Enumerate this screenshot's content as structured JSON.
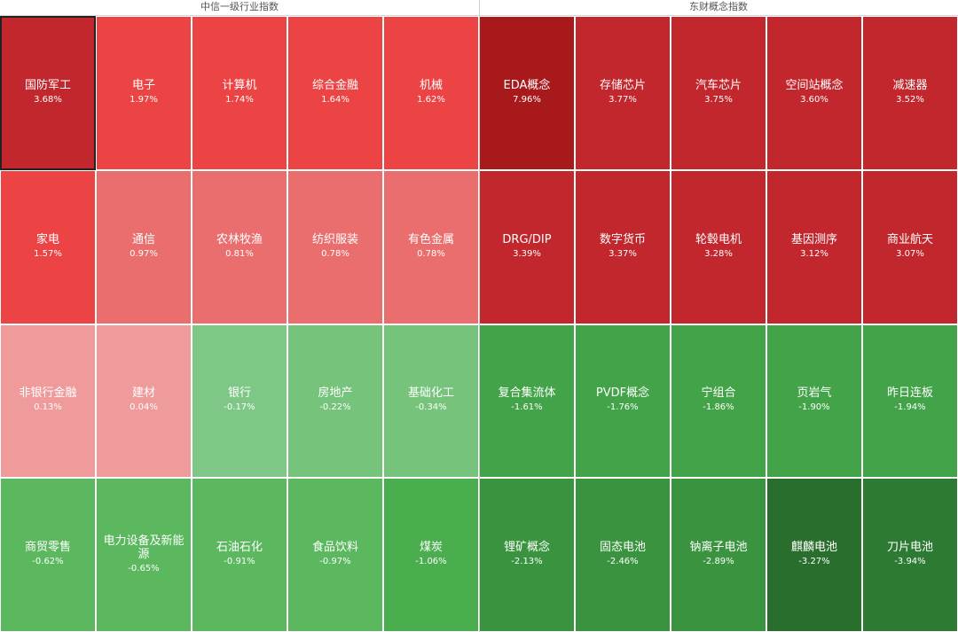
{
  "panels": [
    {
      "title": "中信一级行业指数",
      "cells": [
        {
          "name": "国防军工",
          "pct": "3.68%",
          "value": 3.68,
          "color": "#c1272d",
          "selected": true
        },
        {
          "name": "电子",
          "pct": "1.97%",
          "value": 1.97,
          "color": "#ec4444"
        },
        {
          "name": "计算机",
          "pct": "1.74%",
          "value": 1.74,
          "color": "#ec4444"
        },
        {
          "name": "综合金融",
          "pct": "1.64%",
          "value": 1.64,
          "color": "#ec4444"
        },
        {
          "name": "机械",
          "pct": "1.62%",
          "value": 1.62,
          "color": "#ec4444"
        },
        {
          "name": "家电",
          "pct": "1.57%",
          "value": 1.57,
          "color": "#ec4444"
        },
        {
          "name": "通信",
          "pct": "0.97%",
          "value": 0.97,
          "color": "#eb6e6e"
        },
        {
          "name": "农林牧渔",
          "pct": "0.81%",
          "value": 0.81,
          "color": "#eb6e6e"
        },
        {
          "name": "纺织服装",
          "pct": "0.78%",
          "value": 0.78,
          "color": "#eb6e6e"
        },
        {
          "name": "有色金属",
          "pct": "0.78%",
          "value": 0.78,
          "color": "#eb6e6e"
        },
        {
          "name": "非银行金融",
          "pct": "0.13%",
          "value": 0.13,
          "color": "#ef9a9b"
        },
        {
          "name": "建材",
          "pct": "0.04%",
          "value": 0.04,
          "color": "#ef9a9b"
        },
        {
          "name": "银行",
          "pct": "-0.17%",
          "value": -0.17,
          "color": "#7ec786"
        },
        {
          "name": "房地产",
          "pct": "-0.22%",
          "value": -0.22,
          "color": "#76c47c"
        },
        {
          "name": "基础化工",
          "pct": "-0.34%",
          "value": -0.34,
          "color": "#76c47c"
        },
        {
          "name": "商贸零售",
          "pct": "-0.62%",
          "value": -0.62,
          "color": "#5bb85f"
        },
        {
          "name": "电力设备及新能源",
          "pct": "-0.65%",
          "value": -0.65,
          "color": "#5bb85f"
        },
        {
          "name": "石油石化",
          "pct": "-0.91%",
          "value": -0.91,
          "color": "#5bb85f"
        },
        {
          "name": "食品饮料",
          "pct": "-0.97%",
          "value": -0.97,
          "color": "#5bb85f"
        },
        {
          "name": "煤炭",
          "pct": "-1.06%",
          "value": -1.06,
          "color": "#4aae4e"
        }
      ]
    },
    {
      "title": "东财概念指数",
      "cells": [
        {
          "name": "EDA概念",
          "pct": "7.96%",
          "value": 7.96,
          "color": "#a8191b"
        },
        {
          "name": "存储芯片",
          "pct": "3.77%",
          "value": 3.77,
          "color": "#c1272d"
        },
        {
          "name": "汽车芯片",
          "pct": "3.75%",
          "value": 3.75,
          "color": "#c1272d"
        },
        {
          "name": "空间站概念",
          "pct": "3.60%",
          "value": 3.6,
          "color": "#c1272d"
        },
        {
          "name": "减速器",
          "pct": "3.52%",
          "value": 3.52,
          "color": "#c1272d"
        },
        {
          "name": "DRG/DIP",
          "pct": "3.39%",
          "value": 3.39,
          "color": "#c1272d"
        },
        {
          "name": "数字货币",
          "pct": "3.37%",
          "value": 3.37,
          "color": "#c1272d"
        },
        {
          "name": "轮毂电机",
          "pct": "3.28%",
          "value": 3.28,
          "color": "#c1272d"
        },
        {
          "name": "基因测序",
          "pct": "3.12%",
          "value": 3.12,
          "color": "#c1272d"
        },
        {
          "name": "商业航天",
          "pct": "3.07%",
          "value": 3.07,
          "color": "#c1272d"
        },
        {
          "name": "复合集流体",
          "pct": "-1.61%",
          "value": -1.61,
          "color": "#43a348"
        },
        {
          "name": "PVDF概念",
          "pct": "-1.76%",
          "value": -1.76,
          "color": "#43a348"
        },
        {
          "name": "宁组合",
          "pct": "-1.86%",
          "value": -1.86,
          "color": "#43a348"
        },
        {
          "name": "页岩气",
          "pct": "-1.90%",
          "value": -1.9,
          "color": "#43a348"
        },
        {
          "name": "昨日连板",
          "pct": "-1.94%",
          "value": -1.94,
          "color": "#43a348"
        },
        {
          "name": "锂矿概念",
          "pct": "-2.13%",
          "value": -2.13,
          "color": "#3a943f"
        },
        {
          "name": "固态电池",
          "pct": "-2.46%",
          "value": -2.46,
          "color": "#3a943f"
        },
        {
          "name": "钠离子电池",
          "pct": "-2.89%",
          "value": -2.89,
          "color": "#3a943f"
        },
        {
          "name": "麒麟电池",
          "pct": "-3.27%",
          "value": -3.27,
          "color": "#2a6e2e"
        },
        {
          "name": "刀片电池",
          "pct": "-3.94%",
          "value": -3.94,
          "color": "#2d7a32"
        }
      ]
    }
  ],
  "chart_data": {
    "type": "heatmap",
    "panels": [
      {
        "title": "中信一级行业指数",
        "categories": [
          "国防军工",
          "电子",
          "计算机",
          "综合金融",
          "机械",
          "家电",
          "通信",
          "农林牧渔",
          "纺织服装",
          "有色金属",
          "非银行金融",
          "建材",
          "银行",
          "房地产",
          "基础化工",
          "商贸零售",
          "电力设备及新能源",
          "石油石化",
          "食品饮料",
          "煤炭"
        ],
        "values": [
          3.68,
          1.97,
          1.74,
          1.64,
          1.62,
          1.57,
          0.97,
          0.81,
          0.78,
          0.78,
          0.13,
          0.04,
          -0.17,
          -0.22,
          -0.34,
          -0.62,
          -0.65,
          -0.91,
          -0.97,
          -1.06
        ]
      },
      {
        "title": "东财概念指数",
        "categories": [
          "EDA概念",
          "存储芯片",
          "汽车芯片",
          "空间站概念",
          "减速器",
          "DRG/DIP",
          "数字货币",
          "轮毂电机",
          "基因测序",
          "商业航天",
          "复合集流体",
          "PVDF概念",
          "宁组合",
          "页岩气",
          "昨日连板",
          "锂矿概念",
          "固态电池",
          "钠离子电池",
          "麒麟电池",
          "刀片电池"
        ],
        "values": [
          7.96,
          3.77,
          3.75,
          3.6,
          3.52,
          3.39,
          3.37,
          3.28,
          3.12,
          3.07,
          -1.61,
          -1.76,
          -1.86,
          -1.9,
          -1.94,
          -2.13,
          -2.46,
          -2.89,
          -3.27,
          -3.94
        ]
      }
    ]
  }
}
